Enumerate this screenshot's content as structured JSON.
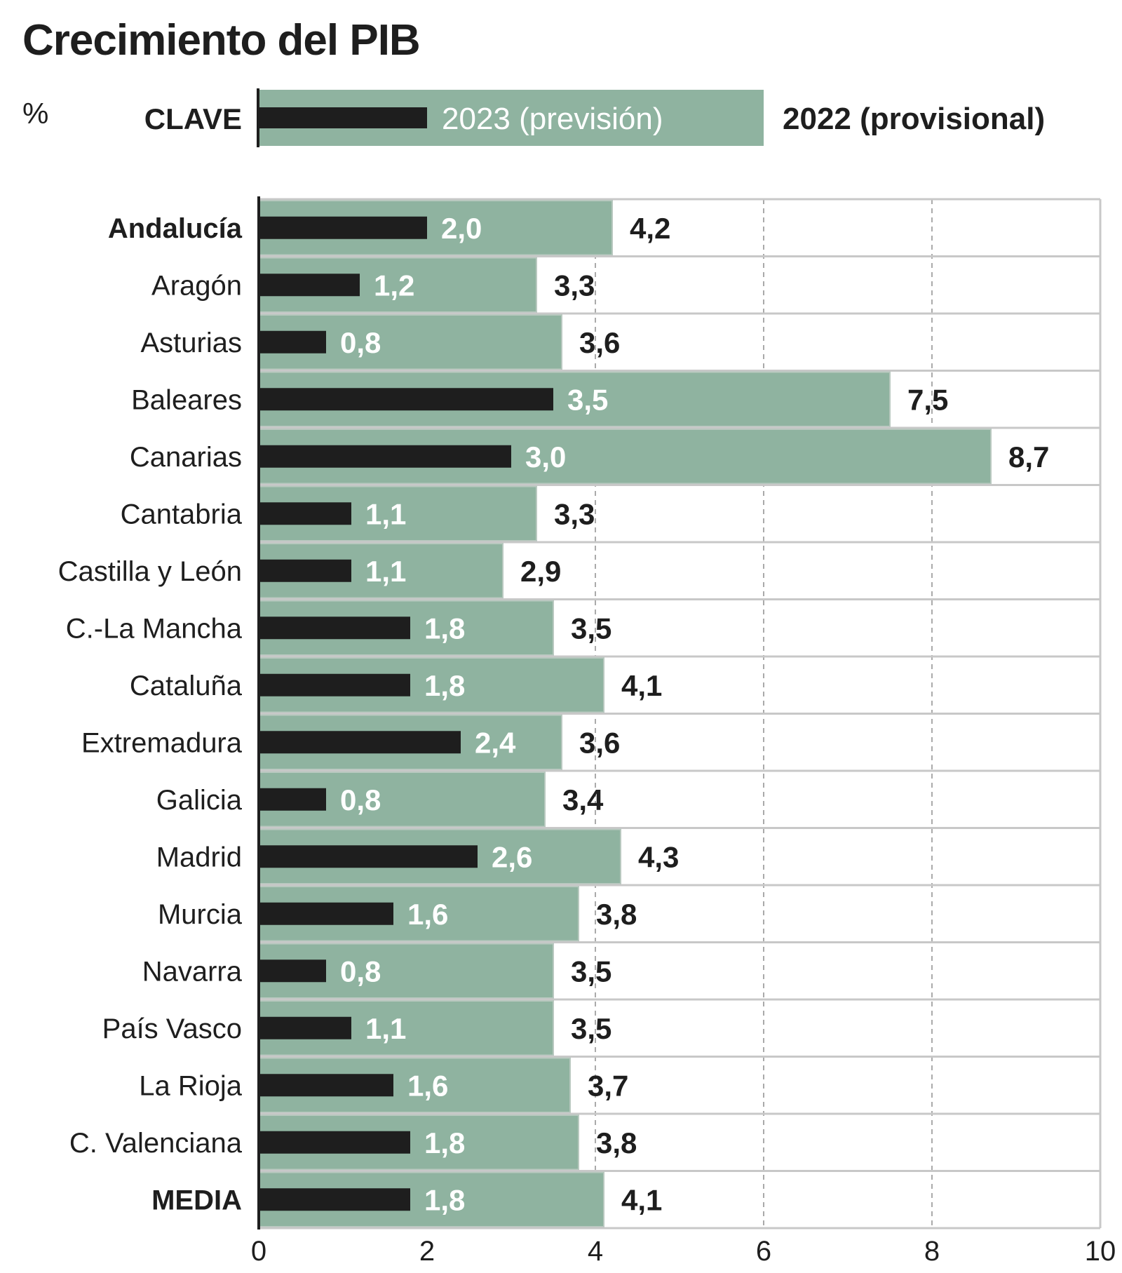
{
  "title": "Crecimiento del PIB",
  "unit": "%",
  "legend": {
    "key_label": "CLAVE",
    "series_2023": "2023 (previsión)",
    "series_2022": "2022 (provisional)"
  },
  "colors": {
    "series_2023": "#1e1e1e",
    "series_2022": "#8fb3a0",
    "grid": "#c8c8c8"
  },
  "chart_data": {
    "type": "bar",
    "orientation": "horizontal",
    "title": "Crecimiento del PIB",
    "categories": [
      "Andalucía",
      "Aragón",
      "Asturias",
      "Baleares",
      "Canarias",
      "Cantabria",
      "Castilla y León",
      "C.-La Mancha",
      "Cataluña",
      "Extremadura",
      "Galicia",
      "Madrid",
      "Murcia",
      "Navarra",
      "País Vasco",
      "La Rioja",
      "C. Valenciana",
      "MEDIA"
    ],
    "bold_categories": [
      "Andalucía",
      "MEDIA"
    ],
    "series": [
      {
        "name": "2023 (previsión)",
        "values": [
          2.0,
          1.2,
          0.8,
          3.5,
          3.0,
          1.1,
          1.1,
          1.8,
          1.8,
          2.4,
          0.8,
          2.6,
          1.6,
          0.8,
          1.1,
          1.6,
          1.8,
          1.8
        ]
      },
      {
        "name": "2022 (provisional)",
        "values": [
          4.2,
          3.3,
          3.6,
          7.5,
          8.7,
          3.3,
          2.9,
          3.5,
          4.1,
          3.6,
          3.4,
          4.3,
          3.8,
          3.5,
          3.5,
          3.7,
          3.8,
          4.1
        ]
      }
    ],
    "xlim": [
      0,
      10
    ],
    "xticks": [
      "0",
      "2",
      "4",
      "6",
      "8",
      "10"
    ],
    "grid": "vertical dashed",
    "legend": "top"
  }
}
